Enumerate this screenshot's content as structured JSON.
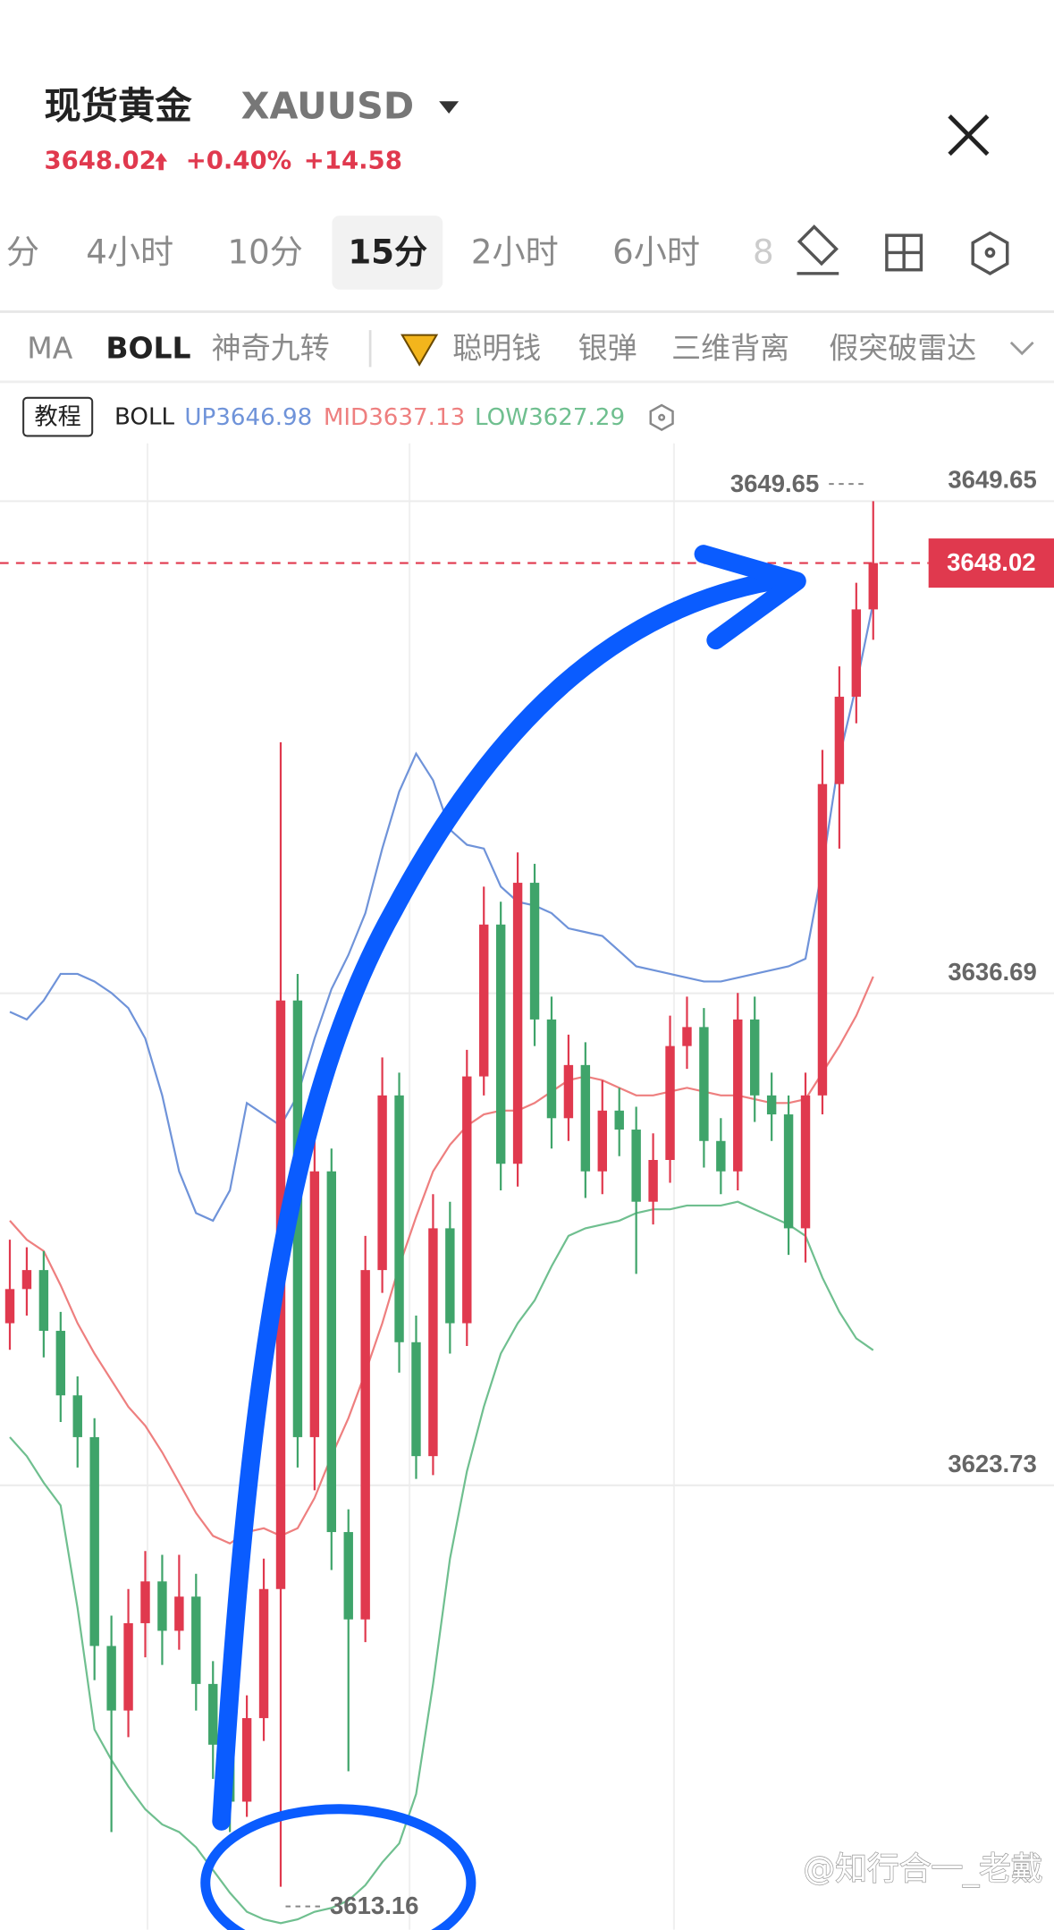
{
  "header": {
    "title": "现货黄金",
    "symbol": "XAUUSD",
    "change_pct": "+0.40%",
    "change": "+14.58"
  },
  "tabs": [
    "分",
    "4小时",
    "10分",
    "15分",
    "2小时",
    "6小时",
    "8"
  ],
  "indicators": [
    "MA",
    "BOLL",
    "神奇九转",
    "聪明钱",
    "银弹",
    "三维背离",
    "假突破雷达"
  ],
  "tutorial": "教程",
  "watermark": "@知行合一_老戴",
  "chart_data": {
    "type": "candlestick",
    "indicator": "BOLL",
    "ylim": [
      3612.03,
      3652.47
    ],
    "yticks": [
      3649.65,
      3636.69,
      3623.73
    ],
    "up_color": "#e0394e",
    "down_color": "#3fa46a",
    "candles": [
      [
        3628.0,
        3630.2,
        3627.3,
        3628.9
      ],
      [
        3628.9,
        3630.0,
        3628.2,
        3629.4
      ],
      [
        3629.4,
        3629.9,
        3627.1,
        3627.8
      ],
      [
        3627.8,
        3628.3,
        3625.4,
        3626.1
      ],
      [
        3626.1,
        3626.6,
        3624.2,
        3625.0
      ],
      [
        3625.0,
        3625.5,
        3618.6,
        3619.5
      ],
      [
        3619.5,
        3620.3,
        3614.6,
        3617.8
      ],
      [
        3617.8,
        3621.0,
        3617.1,
        3620.1
      ],
      [
        3620.1,
        3622.0,
        3619.2,
        3621.2
      ],
      [
        3621.2,
        3621.9,
        3619.0,
        3619.9
      ],
      [
        3619.9,
        3621.9,
        3619.4,
        3620.8
      ],
      [
        3620.8,
        3621.4,
        3617.8,
        3618.5
      ],
      [
        3618.5,
        3619.1,
        3616.0,
        3616.9
      ],
      [
        3616.9,
        3617.5,
        3614.6,
        3615.4
      ],
      [
        3615.4,
        3618.2,
        3615.0,
        3617.6
      ],
      [
        3617.6,
        3621.8,
        3617.0,
        3621.0
      ],
      [
        3621.0,
        3643.3,
        3613.16,
        3636.5
      ],
      [
        3636.5,
        3637.2,
        3624.2,
        3625.0
      ],
      [
        3625.0,
        3633.0,
        3623.6,
        3632.0
      ],
      [
        3632.0,
        3632.6,
        3621.5,
        3622.5
      ],
      [
        3622.5,
        3623.1,
        3616.2,
        3620.2
      ],
      [
        3620.2,
        3630.3,
        3619.6,
        3629.4
      ],
      [
        3629.4,
        3635.0,
        3628.8,
        3634.0
      ],
      [
        3634.0,
        3634.6,
        3626.7,
        3627.5
      ],
      [
        3627.5,
        3628.2,
        3623.9,
        3624.5
      ],
      [
        3624.5,
        3631.4,
        3624.0,
        3630.5
      ],
      [
        3630.5,
        3631.2,
        3627.2,
        3628.0
      ],
      [
        3628.0,
        3635.2,
        3627.4,
        3634.5
      ],
      [
        3634.5,
        3639.5,
        3634.0,
        3638.5
      ],
      [
        3638.5,
        3639.1,
        3631.5,
        3632.2
      ],
      [
        3632.2,
        3640.4,
        3631.6,
        3639.6
      ],
      [
        3639.6,
        3640.1,
        3635.3,
        3636.0
      ],
      [
        3636.0,
        3636.6,
        3632.6,
        3633.4
      ],
      [
        3633.4,
        3635.6,
        3632.8,
        3634.8
      ],
      [
        3634.8,
        3635.4,
        3631.3,
        3632.0
      ],
      [
        3632.0,
        3634.4,
        3631.4,
        3633.6
      ],
      [
        3633.6,
        3634.2,
        3632.4,
        3633.1
      ],
      [
        3633.1,
        3633.7,
        3629.3,
        3631.2
      ],
      [
        3631.2,
        3633.0,
        3630.6,
        3632.3
      ],
      [
        3632.3,
        3636.1,
        3631.7,
        3635.3
      ],
      [
        3635.3,
        3636.6,
        3634.7,
        3635.8
      ],
      [
        3635.8,
        3636.3,
        3632.1,
        3632.8
      ],
      [
        3632.8,
        3633.4,
        3631.4,
        3632.0
      ],
      [
        3632.0,
        3636.7,
        3631.5,
        3636.0
      ],
      [
        3636.0,
        3636.6,
        3633.3,
        3634.0
      ],
      [
        3634.0,
        3634.6,
        3632.8,
        3633.5
      ],
      [
        3633.5,
        3634.0,
        3629.8,
        3630.5
      ],
      [
        3630.5,
        3634.6,
        3629.6,
        3634.0
      ],
      [
        3634.0,
        3643.1,
        3633.5,
        3642.2
      ],
      [
        3642.2,
        3645.3,
        3640.5,
        3644.5
      ],
      [
        3644.5,
        3647.5,
        3643.8,
        3646.8
      ],
      [
        3646.8,
        3649.65,
        3646.0,
        3648.02
      ]
    ],
    "series": [
      {
        "name": "UP",
        "color": "#6f93d9",
        "values": [
          3636.2,
          3636.0,
          3636.5,
          3637.2,
          3637.2,
          3637.0,
          3636.7,
          3636.3,
          3635.5,
          3634.0,
          3632.0,
          3630.9,
          3630.7,
          3631.5,
          3633.8,
          3633.5,
          3633.2,
          3634.0,
          3635.5,
          3636.8,
          3637.7,
          3638.8,
          3640.5,
          3642.0,
          3643.0,
          3642.3,
          3641.0,
          3640.6,
          3640.5,
          3639.5,
          3639.1,
          3639.0,
          3638.8,
          3638.4,
          3638.3,
          3638.2,
          3637.8,
          3637.4,
          3637.3,
          3637.2,
          3637.1,
          3637.0,
          3637.0,
          3637.1,
          3637.2,
          3637.3,
          3637.4,
          3637.6,
          3640.0,
          3642.9,
          3644.8,
          3646.98
        ]
      },
      {
        "name": "MID",
        "color": "#ee7f7f",
        "values": [
          3630.7,
          3630.2,
          3629.9,
          3629.0,
          3628.0,
          3627.2,
          3626.5,
          3625.8,
          3625.3,
          3624.6,
          3623.8,
          3623.0,
          3622.4,
          3622.2,
          3622.5,
          3622.6,
          3622.4,
          3622.6,
          3623.4,
          3624.5,
          3625.5,
          3626.7,
          3628.0,
          3629.5,
          3630.8,
          3632.0,
          3632.7,
          3633.2,
          3633.5,
          3633.6,
          3633.6,
          3633.8,
          3634.1,
          3634.4,
          3634.5,
          3634.4,
          3634.2,
          3634.0,
          3634.0,
          3634.1,
          3634.2,
          3634.1,
          3634.0,
          3634.0,
          3633.9,
          3633.8,
          3633.8,
          3633.9,
          3634.6,
          3635.3,
          3636.1,
          3637.13
        ]
      },
      {
        "name": "LOW",
        "color": "#6fbf8f",
        "values": [
          3625.0,
          3624.5,
          3623.8,
          3623.2,
          3620.5,
          3617.3,
          3616.5,
          3615.8,
          3615.2,
          3614.8,
          3614.6,
          3614.2,
          3613.6,
          3613.0,
          3612.5,
          3612.3,
          3612.2,
          3612.3,
          3612.5,
          3612.6,
          3612.8,
          3613.2,
          3613.8,
          3614.3,
          3615.6,
          3618.5,
          3621.8,
          3624.1,
          3625.8,
          3627.2,
          3628.0,
          3628.6,
          3629.5,
          3630.3,
          3630.5,
          3630.6,
          3630.7,
          3630.9,
          3631.0,
          3631.0,
          3631.1,
          3631.1,
          3631.1,
          3631.2,
          3631.0,
          3630.8,
          3630.6,
          3630.3,
          3629.2,
          3628.3,
          3627.6,
          3627.29
        ]
      }
    ]
  }
}
